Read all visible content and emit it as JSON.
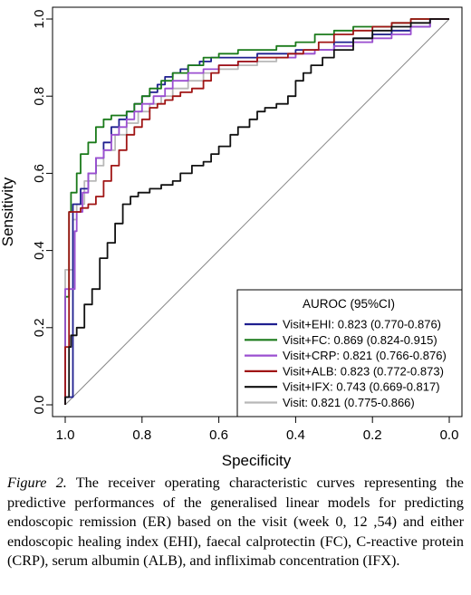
{
  "chart_data": {
    "type": "line",
    "xlabel": "Specificity",
    "ylabel": "Sensitivity",
    "x_reversed": true,
    "xlim": [
      1.0,
      0.0
    ],
    "ylim": [
      0.0,
      1.0
    ],
    "xticks": [
      "1.0",
      "0.8",
      "0.6",
      "0.4",
      "0.2",
      "0.0"
    ],
    "yticks": [
      "0.0",
      "0.2",
      "0.4",
      "0.6",
      "0.8",
      "1.0"
    ],
    "diagonal_reference": true,
    "legend_title": "AUROC (95%CI)",
    "legend_position": "bottom-right",
    "series": [
      {
        "name": "Visit+EHI: 0.823 (0.770-0.876)",
        "color": "#1f1f8f",
        "points": [
          [
            1.0,
            0.0
          ],
          [
            0.98,
            0.02
          ],
          [
            0.98,
            0.5
          ],
          [
            0.96,
            0.52
          ],
          [
            0.94,
            0.56
          ],
          [
            0.92,
            0.6
          ],
          [
            0.9,
            0.64
          ],
          [
            0.88,
            0.68
          ],
          [
            0.86,
            0.72
          ],
          [
            0.84,
            0.74
          ],
          [
            0.82,
            0.76
          ],
          [
            0.8,
            0.78
          ],
          [
            0.78,
            0.8
          ],
          [
            0.76,
            0.81
          ],
          [
            0.74,
            0.83
          ],
          [
            0.72,
            0.85
          ],
          [
            0.7,
            0.86
          ],
          [
            0.68,
            0.87
          ],
          [
            0.65,
            0.88
          ],
          [
            0.62,
            0.89
          ],
          [
            0.58,
            0.9
          ],
          [
            0.55,
            0.9
          ],
          [
            0.5,
            0.9
          ],
          [
            0.45,
            0.91
          ],
          [
            0.4,
            0.91
          ],
          [
            0.35,
            0.92
          ],
          [
            0.3,
            0.92
          ],
          [
            0.25,
            0.94
          ],
          [
            0.2,
            0.95
          ],
          [
            0.15,
            0.96
          ],
          [
            0.1,
            0.97
          ],
          [
            0.05,
            0.98
          ],
          [
            0.0,
            1.0
          ]
        ]
      },
      {
        "name": "Visit+FC: 0.869 (0.824-0.915)",
        "color": "#1a7a1a",
        "points": [
          [
            1.0,
            0.0
          ],
          [
            0.99,
            0.28
          ],
          [
            0.985,
            0.5
          ],
          [
            0.97,
            0.55
          ],
          [
            0.96,
            0.6
          ],
          [
            0.94,
            0.65
          ],
          [
            0.92,
            0.68
          ],
          [
            0.9,
            0.72
          ],
          [
            0.88,
            0.74
          ],
          [
            0.86,
            0.75
          ],
          [
            0.84,
            0.75
          ],
          [
            0.82,
            0.76
          ],
          [
            0.8,
            0.78
          ],
          [
            0.78,
            0.8
          ],
          [
            0.75,
            0.82
          ],
          [
            0.72,
            0.84
          ],
          [
            0.68,
            0.86
          ],
          [
            0.64,
            0.88
          ],
          [
            0.6,
            0.9
          ],
          [
            0.55,
            0.91
          ],
          [
            0.5,
            0.92
          ],
          [
            0.45,
            0.92
          ],
          [
            0.4,
            0.93
          ],
          [
            0.35,
            0.94
          ],
          [
            0.3,
            0.96
          ],
          [
            0.25,
            0.97
          ],
          [
            0.2,
            0.98
          ],
          [
            0.15,
            0.98
          ],
          [
            0.1,
            0.99
          ],
          [
            0.05,
            1.0
          ],
          [
            0.0,
            1.0
          ]
        ]
      },
      {
        "name": "Visit+CRP: 0.821 (0.766-0.876)",
        "color": "#9b4fd1",
        "points": [
          [
            1.0,
            0.0
          ],
          [
            0.975,
            0.3
          ],
          [
            0.97,
            0.45
          ],
          [
            0.955,
            0.5
          ],
          [
            0.94,
            0.55
          ],
          [
            0.92,
            0.6
          ],
          [
            0.9,
            0.64
          ],
          [
            0.88,
            0.66
          ],
          [
            0.86,
            0.7
          ],
          [
            0.84,
            0.72
          ],
          [
            0.82,
            0.74
          ],
          [
            0.8,
            0.76
          ],
          [
            0.77,
            0.78
          ],
          [
            0.74,
            0.8
          ],
          [
            0.72,
            0.82
          ],
          [
            0.68,
            0.84
          ],
          [
            0.64,
            0.86
          ],
          [
            0.6,
            0.87
          ],
          [
            0.55,
            0.88
          ],
          [
            0.5,
            0.89
          ],
          [
            0.45,
            0.9
          ],
          [
            0.4,
            0.9
          ],
          [
            0.35,
            0.91
          ],
          [
            0.3,
            0.92
          ],
          [
            0.25,
            0.93
          ],
          [
            0.2,
            0.94
          ],
          [
            0.15,
            0.95
          ],
          [
            0.1,
            0.96
          ],
          [
            0.05,
            0.98
          ],
          [
            0.0,
            1.0
          ]
        ]
      },
      {
        "name": "Visit+ALB: 0.823 (0.772-0.873)",
        "color": "#a01515",
        "points": [
          [
            1.0,
            0.0
          ],
          [
            0.99,
            0.15
          ],
          [
            0.985,
            0.5
          ],
          [
            0.96,
            0.5
          ],
          [
            0.94,
            0.51
          ],
          [
            0.92,
            0.52
          ],
          [
            0.9,
            0.54
          ],
          [
            0.88,
            0.58
          ],
          [
            0.86,
            0.62
          ],
          [
            0.84,
            0.66
          ],
          [
            0.82,
            0.7
          ],
          [
            0.8,
            0.72
          ],
          [
            0.78,
            0.74
          ],
          [
            0.76,
            0.77
          ],
          [
            0.74,
            0.78
          ],
          [
            0.72,
            0.79
          ],
          [
            0.7,
            0.8
          ],
          [
            0.67,
            0.81
          ],
          [
            0.64,
            0.82
          ],
          [
            0.62,
            0.84
          ],
          [
            0.6,
            0.86
          ],
          [
            0.55,
            0.88
          ],
          [
            0.5,
            0.89
          ],
          [
            0.46,
            0.9
          ],
          [
            0.42,
            0.9
          ],
          [
            0.38,
            0.91
          ],
          [
            0.34,
            0.92
          ],
          [
            0.3,
            0.94
          ],
          [
            0.25,
            0.96
          ],
          [
            0.2,
            0.97
          ],
          [
            0.15,
            0.98
          ],
          [
            0.1,
            0.99
          ],
          [
            0.05,
            1.0
          ],
          [
            0.0,
            1.0
          ]
        ]
      },
      {
        "name": "Visit+IFX: 0.743 (0.669-0.817)",
        "color": "#111111",
        "points": [
          [
            1.0,
            0.0
          ],
          [
            0.99,
            0.02
          ],
          [
            0.985,
            0.15
          ],
          [
            0.97,
            0.18
          ],
          [
            0.95,
            0.2
          ],
          [
            0.93,
            0.26
          ],
          [
            0.91,
            0.3
          ],
          [
            0.89,
            0.38
          ],
          [
            0.87,
            0.42
          ],
          [
            0.85,
            0.47
          ],
          [
            0.83,
            0.52
          ],
          [
            0.81,
            0.54
          ],
          [
            0.78,
            0.55
          ],
          [
            0.75,
            0.56
          ],
          [
            0.72,
            0.57
          ],
          [
            0.7,
            0.58
          ],
          [
            0.67,
            0.6
          ],
          [
            0.64,
            0.62
          ],
          [
            0.62,
            0.63
          ],
          [
            0.6,
            0.65
          ],
          [
            0.57,
            0.67
          ],
          [
            0.55,
            0.7
          ],
          [
            0.52,
            0.72
          ],
          [
            0.5,
            0.74
          ],
          [
            0.48,
            0.76
          ],
          [
            0.45,
            0.77
          ],
          [
            0.42,
            0.78
          ],
          [
            0.4,
            0.8
          ],
          [
            0.38,
            0.84
          ],
          [
            0.36,
            0.86
          ],
          [
            0.33,
            0.88
          ],
          [
            0.3,
            0.9
          ],
          [
            0.25,
            0.92
          ],
          [
            0.2,
            0.95
          ],
          [
            0.15,
            0.97
          ],
          [
            0.1,
            0.98
          ],
          [
            0.05,
            0.99
          ],
          [
            0.0,
            1.0
          ]
        ]
      },
      {
        "name": "Visit: 0.821 (0.775-0.866)",
        "color": "#b8b8b8",
        "points": [
          [
            1.0,
            0.0
          ],
          [
            0.98,
            0.35
          ],
          [
            0.97,
            0.48
          ],
          [
            0.95,
            0.52
          ],
          [
            0.92,
            0.58
          ],
          [
            0.9,
            0.62
          ],
          [
            0.87,
            0.66
          ],
          [
            0.84,
            0.7
          ],
          [
            0.81,
            0.73
          ],
          [
            0.78,
            0.76
          ],
          [
            0.75,
            0.78
          ],
          [
            0.72,
            0.8
          ],
          [
            0.68,
            0.82
          ],
          [
            0.64,
            0.84
          ],
          [
            0.6,
            0.86
          ],
          [
            0.55,
            0.87
          ],
          [
            0.5,
            0.88
          ],
          [
            0.45,
            0.89
          ],
          [
            0.4,
            0.9
          ],
          [
            0.35,
            0.91
          ],
          [
            0.3,
            0.92
          ],
          [
            0.25,
            0.93
          ],
          [
            0.2,
            0.94
          ],
          [
            0.15,
            0.96
          ],
          [
            0.1,
            0.97
          ],
          [
            0.05,
            0.99
          ],
          [
            0.0,
            1.0
          ]
        ]
      }
    ]
  },
  "caption": {
    "label": "Figure 2.",
    "text": " The receiver operating characteristic curves representing the predictive performances of the generalised linear models for predicting endoscopic remission (ER) based on the visit (week 0, 12 ,54) and either endoscopic healing index (EHI), faecal calprotectin (FC), C-reactive protein (CRP), serum albumin (ALB), and infliximab concentration (IFX)."
  }
}
